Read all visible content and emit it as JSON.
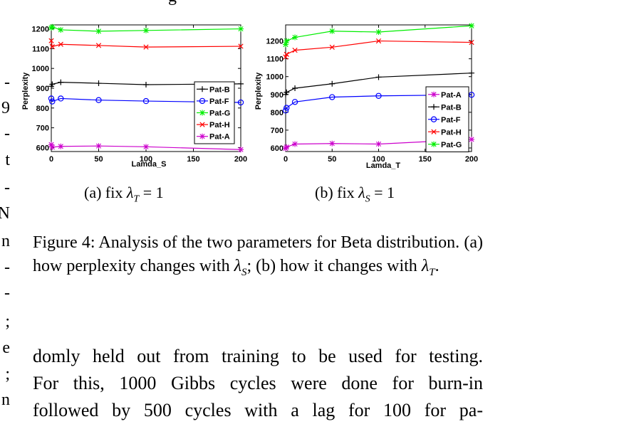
{
  "left_fragments": [
    "-",
    "9",
    "-",
    "t",
    "-",
    "N",
    "n",
    "-",
    "-",
    ";",
    "e",
    ";",
    "n"
  ],
  "top_fragment": "g",
  "chart_data": [
    {
      "type": "line",
      "xlabel": "Lamda_S",
      "ylabel": "Perplexity",
      "xlim": [
        0,
        200
      ],
      "ylim": [
        580,
        1220
      ],
      "xticks": [
        0,
        50,
        100,
        150,
        200
      ],
      "yticks": [
        600,
        700,
        800,
        900,
        1000,
        1100,
        1200
      ],
      "legend_position": "right",
      "x": [
        0,
        1,
        10,
        50,
        100,
        200
      ],
      "series": [
        {
          "name": "Pat-B",
          "color": "#000000",
          "marker": "plus",
          "values": [
            910,
            920,
            930,
            925,
            918,
            922
          ]
        },
        {
          "name": "Pat-F",
          "color": "#0000ff",
          "marker": "circle",
          "values": [
            848,
            833,
            848,
            840,
            835,
            828
          ]
        },
        {
          "name": "Pat-G",
          "color": "#00ee00",
          "marker": "star",
          "values": [
            1205,
            1210,
            1195,
            1188,
            1192,
            1200
          ]
        },
        {
          "name": "Pat-H",
          "color": "#ff0000",
          "marker": "x",
          "values": [
            1140,
            1110,
            1122,
            1116,
            1108,
            1112
          ]
        },
        {
          "name": "Pat-A",
          "color": "#cc00cc",
          "marker": "star",
          "values": [
            615,
            602,
            606,
            608,
            604,
            590
          ]
        }
      ],
      "subcaption": {
        "prefix": "(a) fix ",
        "var": "λ",
        "sub": "T",
        "suffix": " = 1"
      }
    },
    {
      "type": "line",
      "xlabel": "Lamda_T",
      "ylabel": "Perplexity",
      "xlim": [
        0,
        200
      ],
      "ylim": [
        580,
        1290
      ],
      "xticks": [
        0,
        50,
        100,
        150,
        200
      ],
      "yticks": [
        600,
        700,
        800,
        900,
        1000,
        1100,
        1200
      ],
      "legend_position": "bottom-right",
      "x": [
        0,
        1,
        10,
        50,
        100,
        200
      ],
      "series": [
        {
          "name": "Pat-A",
          "color": "#cc00cc",
          "marker": "star",
          "values": [
            598,
            605,
            622,
            625,
            622,
            648
          ]
        },
        {
          "name": "Pat-B",
          "color": "#000000",
          "marker": "plus",
          "values": [
            900,
            912,
            935,
            960,
            997,
            1020
          ]
        },
        {
          "name": "Pat-F",
          "color": "#0000ff",
          "marker": "circle",
          "values": [
            810,
            825,
            858,
            885,
            892,
            898
          ]
        },
        {
          "name": "Pat-H",
          "color": "#ff0000",
          "marker": "x",
          "values": [
            1110,
            1125,
            1148,
            1165,
            1200,
            1192
          ]
        },
        {
          "name": "Pat-G",
          "color": "#00ee00",
          "marker": "star",
          "values": [
            1180,
            1200,
            1220,
            1255,
            1250,
            1285
          ]
        }
      ],
      "subcaption": {
        "prefix": "(b) fix ",
        "var": "λ",
        "sub": "S",
        "suffix": " = 1"
      }
    }
  ],
  "caption": {
    "p1": "Figure 4: Analysis of the two parameters for Beta distribution. (a) how perplexity changes with ",
    "v1": "λ",
    "s1": "S",
    "p2": "; (b) how it changes with ",
    "v2": "λ",
    "s2": "T",
    "p3": "."
  },
  "body_lines": [
    "domly held out from training to be used for testing.",
    "For this, 1000 Gibbs cycles were done for burn-in",
    "followed by 500 cycles with a lag for 100 for pa-"
  ]
}
